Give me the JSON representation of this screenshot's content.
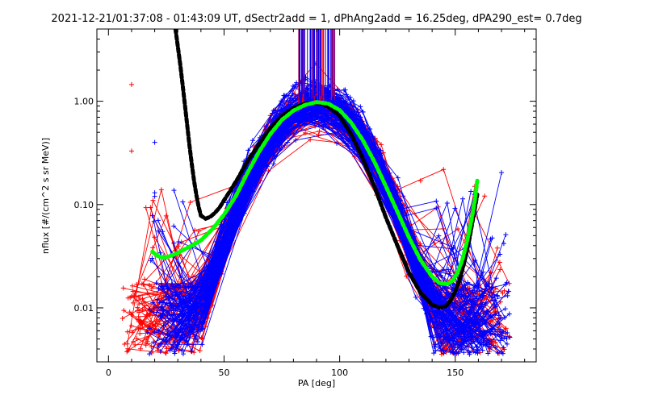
{
  "chart_data": {
    "type": "line",
    "title": "2021-12-21/01:37:08 - 01:43:09 UT, dSectr2add = 1, dPhAng2add = 16.25deg, dPA290_est=   0.7deg",
    "xlabel": "PA [deg]",
    "ylabel": "nflux [#/(cm^2 s sr MeV)]",
    "xlim": [
      -5,
      185
    ],
    "ylim": [
      0.003,
      5
    ],
    "yscale": "log",
    "grid": false,
    "legend": "none",
    "xticks": [
      0,
      50,
      100,
      150
    ],
    "xtick_labels": [
      "0",
      "50",
      "100",
      "150"
    ],
    "yticks": [
      0.01,
      0.1,
      1.0
    ],
    "ytick_labels": [
      "0.01",
      "0.10",
      "1.00"
    ],
    "colors": {
      "red": "#ff0000",
      "blue": "#0000ff",
      "black_fit": "#000000",
      "green_fit": "#00ff00"
    },
    "series": [
      {
        "color": "#000000",
        "style": "thick-dash",
        "x": [
          29,
          30,
          31,
          32,
          33,
          34,
          35,
          36,
          37,
          38,
          39,
          40,
          42,
          44,
          46,
          48,
          50,
          53,
          56,
          60,
          65,
          70,
          75,
          80,
          85,
          90,
          93,
          96,
          100,
          105,
          110,
          115,
          120,
          125,
          130,
          135,
          140,
          143,
          146,
          148,
          150,
          152,
          154,
          156,
          158,
          159.5
        ],
        "y": [
          5.0,
          3.4,
          2.3,
          1.5,
          0.95,
          0.6,
          0.38,
          0.25,
          0.17,
          0.125,
          0.095,
          0.078,
          0.073,
          0.076,
          0.083,
          0.093,
          0.11,
          0.14,
          0.18,
          0.26,
          0.38,
          0.55,
          0.72,
          0.86,
          0.95,
          0.97,
          0.93,
          0.86,
          0.72,
          0.48,
          0.28,
          0.15,
          0.075,
          0.04,
          0.022,
          0.014,
          0.0107,
          0.0101,
          0.0104,
          0.0118,
          0.0145,
          0.019,
          0.028,
          0.045,
          0.08,
          0.125
        ]
      },
      {
        "color": "#00ff00",
        "style": "thick-dash",
        "x": [
          19,
          21,
          23,
          25,
          27,
          30,
          33,
          36,
          40,
          45,
          50,
          55,
          60,
          65,
          70,
          75,
          80,
          85,
          90,
          95,
          100,
          105,
          110,
          115,
          120,
          125,
          130,
          135,
          140,
          143,
          145,
          147,
          149,
          151,
          153,
          155,
          157,
          158.5,
          159.5
        ],
        "y": [
          0.035,
          0.032,
          0.031,
          0.031,
          0.032,
          0.034,
          0.037,
          0.04,
          0.045,
          0.058,
          0.08,
          0.12,
          0.2,
          0.32,
          0.48,
          0.66,
          0.81,
          0.92,
          0.98,
          0.95,
          0.82,
          0.62,
          0.42,
          0.26,
          0.15,
          0.085,
          0.048,
          0.029,
          0.02,
          0.0175,
          0.017,
          0.0172,
          0.0185,
          0.022,
          0.029,
          0.043,
          0.07,
          0.11,
          0.17
        ]
      }
    ],
    "scatter_lines": {
      "red_anchor_pa": [
        10,
        10,
        10,
        15,
        15,
        15,
        20,
        25,
        30
      ],
      "blue_anchor_pa": [
        20,
        20,
        25,
        30,
        35,
        160,
        165,
        170
      ],
      "description_pa_range": [
        10,
        172
      ]
    }
  }
}
